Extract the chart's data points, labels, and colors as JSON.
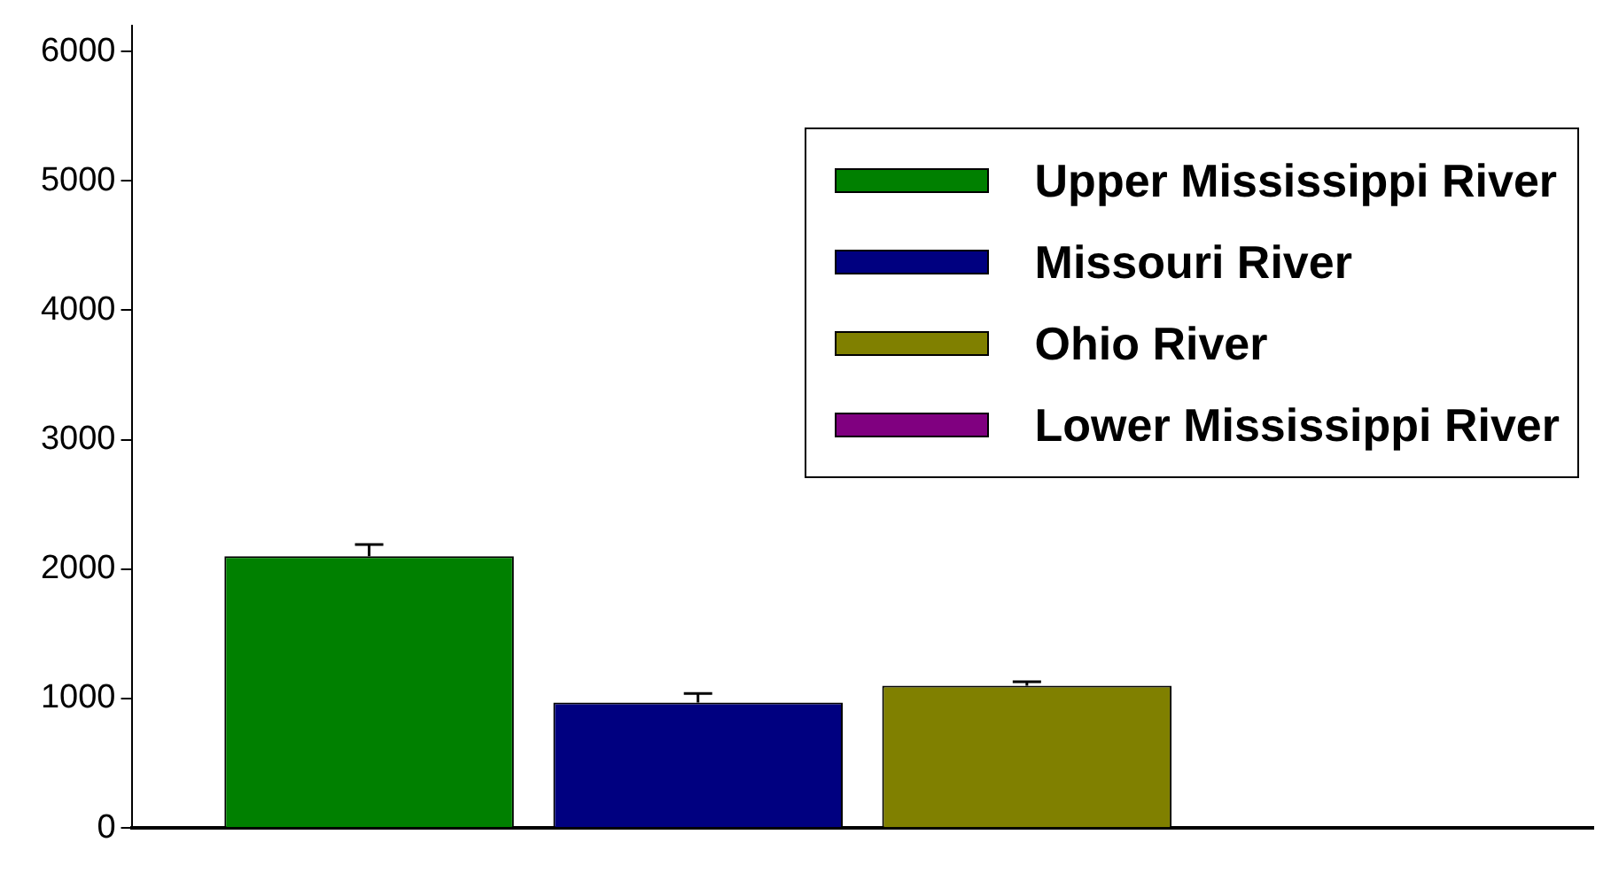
{
  "chart_data": {
    "type": "bar",
    "categories": [
      null
    ],
    "series": [
      {
        "name": "Upper Mississippi River",
        "color": "#008000",
        "values": [
          2100
        ],
        "errors": [
          90
        ]
      },
      {
        "name": "Missouri River",
        "color": "#000080",
        "values": [
          970
        ],
        "errors": [
          70
        ]
      },
      {
        "name": "Ohio River",
        "color": "#808000",
        "values": [
          1100
        ],
        "errors": [
          30
        ]
      },
      {
        "name": "Lower Mississippi River",
        "color": "#800080",
        "values": [
          null
        ],
        "errors": [
          null
        ]
      }
    ],
    "ylim": [
      0,
      6200
    ],
    "yticks": [
      0,
      1000,
      2000,
      3000,
      4000,
      5000,
      6000
    ],
    "grid": false,
    "legend": "top right"
  }
}
